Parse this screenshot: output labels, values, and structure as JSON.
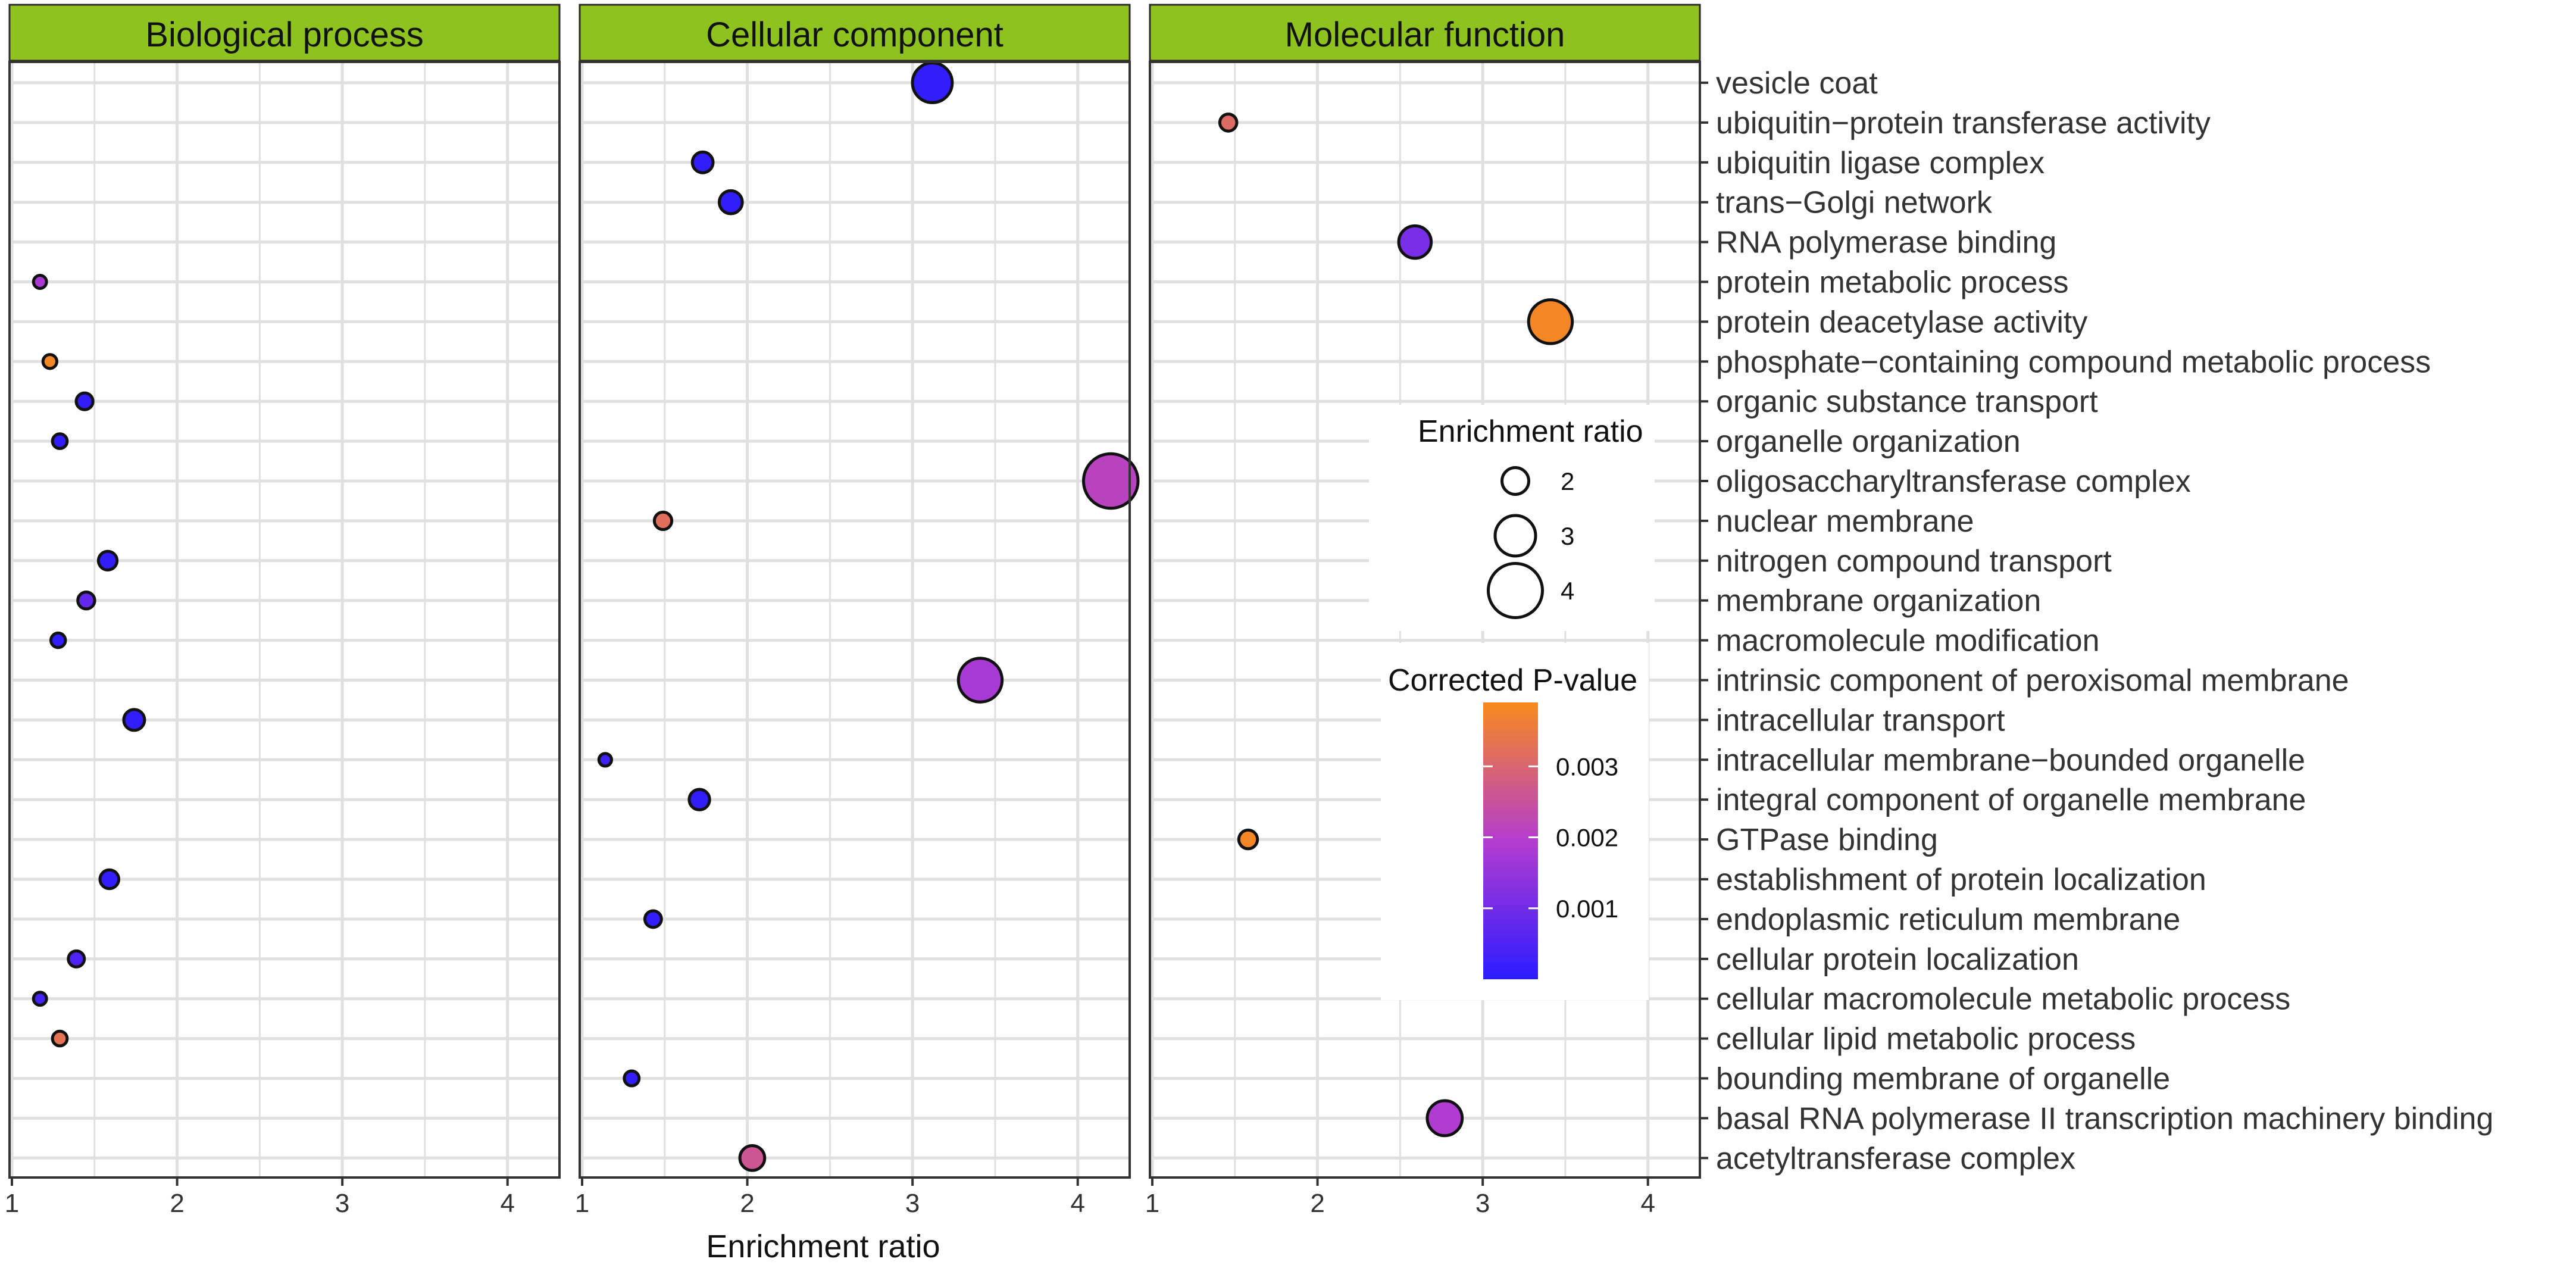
{
  "chart_data": {
    "type": "scatter",
    "xlabel": "Enrichment ratio",
    "ylabel": "",
    "panels": [
      "Biological process",
      "Cellular component",
      "Molecular function"
    ],
    "xlim": [
      1,
      4.3
    ],
    "xticks": [
      1,
      2,
      3,
      4
    ],
    "xtick_labels": [
      "1",
      "2",
      "3",
      "4"
    ],
    "categories": [
      "vesicle coat",
      "ubiquitin−protein transferase activity",
      "ubiquitin ligase complex",
      "trans−Golgi network",
      "RNA polymerase binding",
      "protein metabolic process",
      "protein deacetylase activity",
      "phosphate−containing compound metabolic process",
      "organic substance transport",
      "organelle organization",
      "oligosaccharyltransferase complex",
      "nuclear membrane",
      "nitrogen compound transport",
      "membrane organization",
      "macromolecule modification",
      "intrinsic component of peroxisomal membrane",
      "intracellular transport",
      "intracellular membrane−bounded organelle",
      "integral component of organelle membrane",
      "GTPase binding",
      "establishment of protein localization",
      "endoplasmic reticulum membrane",
      "cellular protein localization",
      "cellular macromolecule metabolic process",
      "cellular lipid metabolic process",
      "bounding membrane of organelle",
      "basal RNA polymerase II transcription machinery binding",
      "acetyltransferase complex"
    ],
    "points": [
      {
        "panel": "Biological process",
        "term": "protein metabolic process",
        "x": 1.17,
        "p": 0.0018
      },
      {
        "panel": "Biological process",
        "term": "phosphate−containing compound metabolic process",
        "x": 1.23,
        "p": 0.0038
      },
      {
        "panel": "Biological process",
        "term": "organic substance transport",
        "x": 1.44,
        "p": 0.0001
      },
      {
        "panel": "Biological process",
        "term": "organelle organization",
        "x": 1.29,
        "p": 0.0001
      },
      {
        "panel": "Biological process",
        "term": "nitrogen compound transport",
        "x": 1.58,
        "p": 0.0001
      },
      {
        "panel": "Biological process",
        "term": "membrane organization",
        "x": 1.45,
        "p": 0.0008
      },
      {
        "panel": "Biological process",
        "term": "macromolecule modification",
        "x": 1.28,
        "p": 0.0001
      },
      {
        "panel": "Biological process",
        "term": "intracellular transport",
        "x": 1.74,
        "p": 0.0001
      },
      {
        "panel": "Biological process",
        "term": "establishment of protein localization",
        "x": 1.59,
        "p": 0.0001
      },
      {
        "panel": "Biological process",
        "term": "cellular protein localization",
        "x": 1.39,
        "p": 0.0005
      },
      {
        "panel": "Biological process",
        "term": "cellular macromolecule metabolic process",
        "x": 1.17,
        "p": 0.0004
      },
      {
        "panel": "Biological process",
        "term": "cellular lipid metabolic process",
        "x": 1.29,
        "p": 0.0033
      },
      {
        "panel": "Cellular component",
        "term": "vesicle coat",
        "x": 3.12,
        "p": 0.0001
      },
      {
        "panel": "Cellular component",
        "term": "ubiquitin ligase complex",
        "x": 1.73,
        "p": 0.0001
      },
      {
        "panel": "Cellular component",
        "term": "trans−Golgi network",
        "x": 1.9,
        "p": 0.0001
      },
      {
        "panel": "Cellular component",
        "term": "oligosaccharyltransferase complex",
        "x": 4.2,
        "p": 0.0021
      },
      {
        "panel": "Cellular component",
        "term": "nuclear membrane",
        "x": 1.49,
        "p": 0.0032
      },
      {
        "panel": "Cellular component",
        "term": "intrinsic component of peroxisomal membrane",
        "x": 3.41,
        "p": 0.0018
      },
      {
        "panel": "Cellular component",
        "term": "intracellular membrane−bounded organelle",
        "x": 1.14,
        "p": 0.0003
      },
      {
        "panel": "Cellular component",
        "term": "integral component of organelle membrane",
        "x": 1.71,
        "p": 0.0001
      },
      {
        "panel": "Cellular component",
        "term": "endoplasmic reticulum membrane",
        "x": 1.43,
        "p": 0.0001
      },
      {
        "panel": "Cellular component",
        "term": "bounding membrane of organelle",
        "x": 1.3,
        "p": 0.0001
      },
      {
        "panel": "Cellular component",
        "term": "acetyltransferase complex",
        "x": 2.03,
        "p": 0.0026
      },
      {
        "panel": "Molecular function",
        "term": "ubiquitin−protein transferase activity",
        "x": 1.46,
        "p": 0.0031
      },
      {
        "panel": "Molecular function",
        "term": "RNA polymerase binding",
        "x": 2.59,
        "p": 0.0011
      },
      {
        "panel": "Molecular function",
        "term": "protein deacetylase activity",
        "x": 3.41,
        "p": 0.0038
      },
      {
        "panel": "Molecular function",
        "term": "GTPase binding",
        "x": 1.58,
        "p": 0.0038
      },
      {
        "panel": "Molecular function",
        "term": "basal RNA polymerase II transcription machinery binding",
        "x": 2.77,
        "p": 0.0019
      }
    ],
    "legend": {
      "size_title": "Enrichment ratio",
      "size_breaks": [
        2,
        3,
        4
      ],
      "size_labels": [
        "2",
        "3",
        "4"
      ],
      "color_title": "Corrected P-value",
      "color_range": [
        0,
        0.0039
      ],
      "color_breaks": [
        0.001,
        0.002,
        0.003
      ],
      "color_labels": [
        "0.001",
        "0.002",
        "0.003"
      ],
      "color_low": "#2b1bff",
      "color_mid": "#b43ccf",
      "color_high": "#f88a1c"
    },
    "colors": {
      "strip": "#8dc21f",
      "strip_border": "#2a2a2a",
      "panel_border": "#333333",
      "grid": "#e0e0e0",
      "point_outline": "#111111"
    }
  }
}
